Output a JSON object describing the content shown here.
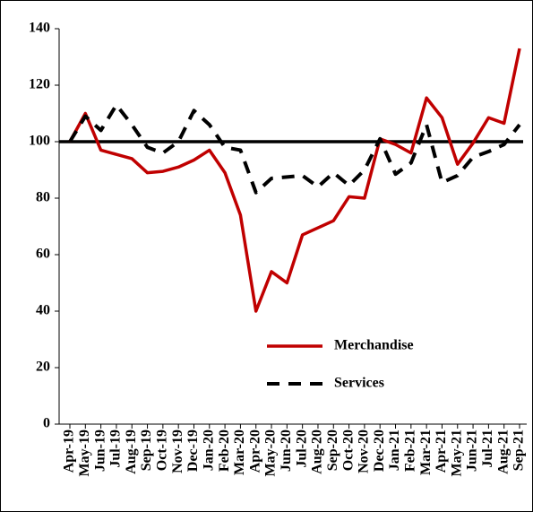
{
  "chart_data": {
    "type": "line",
    "categories": [
      "Apr-19",
      "May-19",
      "Jun-19",
      "Jul-19",
      "Aug-19",
      "Sep-19",
      "Oct-19",
      "Nov-19",
      "Dec-19",
      "Jan-20",
      "Feb-20",
      "Mar-20",
      "Apr-20",
      "May-20",
      "Jun-20",
      "Jul-20",
      "Aug-20",
      "Sep-20",
      "Oct-20",
      "Nov-20",
      "Dec-20",
      "Jan-21",
      "Feb-21",
      "Mar-21",
      "Apr-21",
      "May-21",
      "Jun-21",
      "Jul-21",
      "Aug-21",
      "Sep-21"
    ],
    "series": [
      {
        "name": "Merchandise",
        "color": "#c00000",
        "dash": false,
        "values": [
          100,
          110,
          97,
          95.5,
          94,
          89,
          89.5,
          91,
          93.5,
          97,
          89,
          74,
          40,
          54,
          50,
          67,
          69.5,
          72,
          80.5,
          80,
          101,
          99,
          96,
          115.5,
          108.5,
          92,
          99.5,
          108.5,
          106.5,
          133
        ]
      },
      {
        "name": "Services",
        "color": "#000000",
        "dash": true,
        "values": [
          100,
          109,
          104,
          113,
          106,
          98,
          96,
          100,
          111,
          106,
          98,
          97,
          82,
          87,
          87.5,
          88,
          84,
          89,
          84.5,
          90,
          101,
          88.5,
          92.5,
          106,
          85.5,
          88,
          94.5,
          96.5,
          99,
          106
        ]
      }
    ],
    "reference_line": 100,
    "ylim": [
      0,
      140
    ],
    "yticks": [
      0,
      20,
      40,
      60,
      80,
      100,
      120,
      140
    ]
  }
}
